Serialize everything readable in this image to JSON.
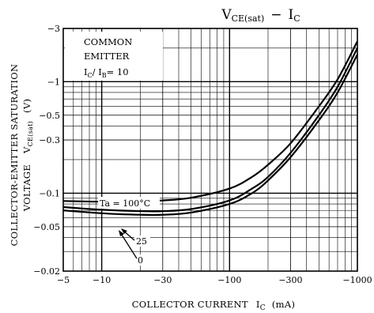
{
  "chart_data": {
    "type": "line",
    "title": {
      "main": "V",
      "main_sub": "CE(sat)",
      "sep": "−",
      "right": "I",
      "right_sub": "C"
    },
    "xlabel": {
      "text": "COLLECTOR CURRENT",
      "symbol": "I",
      "symbol_sub": "C",
      "unit": "(mA)"
    },
    "ylabel": {
      "line1": "COLLECTOR-EMITTER SATURATION",
      "line2_text": "VOLTAGE",
      "line2_symbol": "V",
      "line2_symbol_sub": "CE(sat)",
      "line2_unit": "(V)"
    },
    "x_scale": "log",
    "y_scale": "log",
    "x_axis_reversed_sign": true,
    "xlim": [
      -5,
      -1000
    ],
    "ylim": [
      -0.02,
      -3
    ],
    "grid": true,
    "x_ticks": [
      {
        "value": -5,
        "label": "−5"
      },
      {
        "value": -10,
        "label": "−10"
      },
      {
        "value": -30,
        "label": "−30"
      },
      {
        "value": -100,
        "label": "−100"
      },
      {
        "value": -300,
        "label": "−300"
      },
      {
        "value": -1000,
        "label": "−1000"
      }
    ],
    "y_ticks": [
      {
        "value": -3,
        "label": "−3"
      },
      {
        "value": -1,
        "label": "−1"
      },
      {
        "value": -0.5,
        "label": "−0.5"
      },
      {
        "value": -0.3,
        "label": "−0.3"
      },
      {
        "value": -0.1,
        "label": "−0.1"
      },
      {
        "value": -0.05,
        "label": "−0.05"
      },
      {
        "value": -0.02,
        "label": "−0.02"
      }
    ],
    "annotation": {
      "line1": "COMMON",
      "line2": "EMITTER",
      "line3_sym1": "I",
      "line3_sub1": "C",
      "line3_mid": "/ I",
      "line3_sub2": "B",
      "line3_end": "= 10"
    },
    "series": [
      {
        "name": "Ta = 100°C",
        "x": [
          -5,
          -10,
          -20,
          -30,
          -50,
          -100,
          -150,
          -200,
          -300,
          -500,
          -700,
          -1000
        ],
        "y": [
          -0.085,
          -0.084,
          -0.084,
          -0.086,
          -0.091,
          -0.11,
          -0.14,
          -0.18,
          -0.28,
          -0.6,
          -1.05,
          -2.3
        ]
      },
      {
        "name": "25",
        "x": [
          -5,
          -10,
          -20,
          -30,
          -50,
          -100,
          -150,
          -200,
          -300,
          -500,
          -700,
          -1000
        ],
        "y": [
          -0.075,
          -0.071,
          -0.069,
          -0.069,
          -0.072,
          -0.086,
          -0.11,
          -0.14,
          -0.23,
          -0.5,
          -0.9,
          -2.0
        ]
      },
      {
        "name": "0",
        "x": [
          -5,
          -10,
          -20,
          -30,
          -50,
          -100,
          -150,
          -200,
          -300,
          -500,
          -700,
          -1000
        ],
        "y": [
          -0.07,
          -0.066,
          -0.064,
          -0.064,
          -0.067,
          -0.08,
          -0.1,
          -0.13,
          -0.21,
          -0.45,
          -0.8,
          -1.75
        ]
      }
    ]
  }
}
